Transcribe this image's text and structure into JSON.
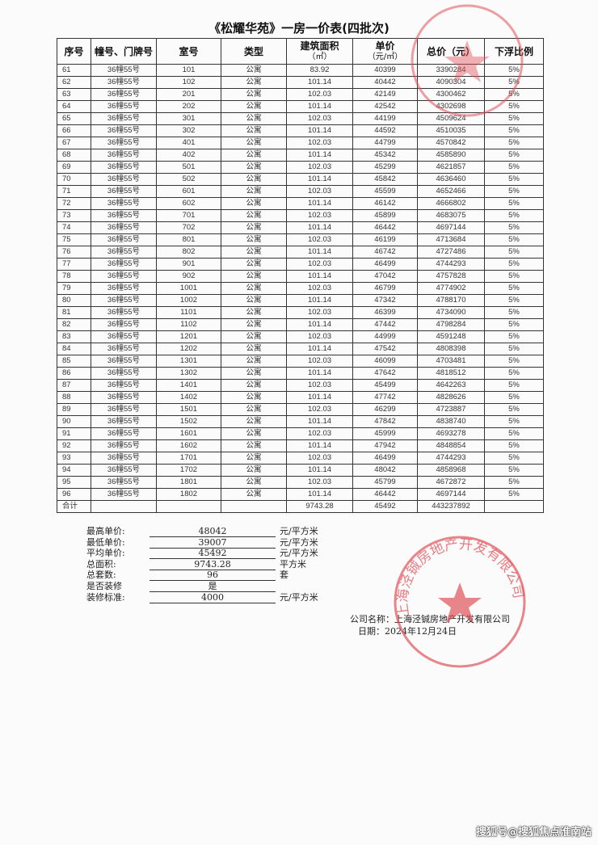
{
  "title": "《松耀华苑》一房一价表(四批次)",
  "table": {
    "headers": [
      "序号",
      "幢号、门牌号",
      "室号",
      "类型",
      "建筑面积",
      "单价",
      "总价（元）",
      "下浮比例"
    ],
    "header_units": {
      "area": "（㎡）",
      "unit_price": "（元/㎡）"
    },
    "rows": [
      [
        "61",
        "36幢55号",
        "101",
        "公寓",
        "83.92",
        "40399",
        "3390284",
        "5%"
      ],
      [
        "62",
        "36幢55号",
        "102",
        "公寓",
        "101.14",
        "40442",
        "4090304",
        "5%"
      ],
      [
        "63",
        "36幢55号",
        "201",
        "公寓",
        "102.03",
        "42149",
        "4300462",
        "5%"
      ],
      [
        "64",
        "36幢55号",
        "202",
        "公寓",
        "101.14",
        "42542",
        "4302698",
        "5%"
      ],
      [
        "65",
        "36幢55号",
        "301",
        "公寓",
        "102.03",
        "44199",
        "4509624",
        "5%"
      ],
      [
        "66",
        "36幢55号",
        "302",
        "公寓",
        "101.14",
        "44592",
        "4510035",
        "5%"
      ],
      [
        "67",
        "36幢55号",
        "401",
        "公寓",
        "102.03",
        "44799",
        "4570842",
        "5%"
      ],
      [
        "68",
        "36幢55号",
        "402",
        "公寓",
        "101.14",
        "45342",
        "4585890",
        "5%"
      ],
      [
        "69",
        "36幢55号",
        "501",
        "公寓",
        "102.03",
        "45299",
        "4621857",
        "5%"
      ],
      [
        "70",
        "36幢55号",
        "502",
        "公寓",
        "101.14",
        "45842",
        "4636460",
        "5%"
      ],
      [
        "71",
        "36幢55号",
        "601",
        "公寓",
        "102.03",
        "45599",
        "4652466",
        "5%"
      ],
      [
        "72",
        "36幢55号",
        "602",
        "公寓",
        "101.14",
        "46142",
        "4666802",
        "5%"
      ],
      [
        "73",
        "36幢55号",
        "701",
        "公寓",
        "102.03",
        "45899",
        "4683075",
        "5%"
      ],
      [
        "74",
        "36幢55号",
        "702",
        "公寓",
        "101.14",
        "46442",
        "4697144",
        "5%"
      ],
      [
        "75",
        "36幢55号",
        "801",
        "公寓",
        "102.03",
        "46199",
        "4713684",
        "5%"
      ],
      [
        "76",
        "36幢55号",
        "802",
        "公寓",
        "101.14",
        "46742",
        "4727486",
        "5%"
      ],
      [
        "77",
        "36幢55号",
        "901",
        "公寓",
        "102.03",
        "46499",
        "4744293",
        "5%"
      ],
      [
        "78",
        "36幢55号",
        "902",
        "公寓",
        "101.14",
        "47042",
        "4757828",
        "5%"
      ],
      [
        "79",
        "36幢55号",
        "1001",
        "公寓",
        "102.03",
        "46799",
        "4774902",
        "5%"
      ],
      [
        "80",
        "36幢55号",
        "1002",
        "公寓",
        "101.14",
        "47342",
        "4788170",
        "5%"
      ],
      [
        "81",
        "36幢55号",
        "1101",
        "公寓",
        "102.03",
        "46399",
        "4734090",
        "5%"
      ],
      [
        "82",
        "36幢55号",
        "1102",
        "公寓",
        "101.14",
        "47442",
        "4798284",
        "5%"
      ],
      [
        "83",
        "36幢55号",
        "1201",
        "公寓",
        "102.03",
        "44999",
        "4591248",
        "5%"
      ],
      [
        "84",
        "36幢55号",
        "1202",
        "公寓",
        "101.14",
        "47542",
        "4808398",
        "5%"
      ],
      [
        "85",
        "36幢55号",
        "1301",
        "公寓",
        "102.03",
        "46099",
        "4703481",
        "5%"
      ],
      [
        "86",
        "36幢55号",
        "1302",
        "公寓",
        "101.14",
        "47642",
        "4818512",
        "5%"
      ],
      [
        "87",
        "36幢55号",
        "1401",
        "公寓",
        "102.03",
        "45499",
        "4642263",
        "5%"
      ],
      [
        "88",
        "36幢55号",
        "1402",
        "公寓",
        "101.14",
        "47742",
        "4828626",
        "5%"
      ],
      [
        "89",
        "36幢55号",
        "1501",
        "公寓",
        "102.03",
        "46299",
        "4723887",
        "5%"
      ],
      [
        "90",
        "36幢55号",
        "1502",
        "公寓",
        "101.14",
        "47842",
        "4838740",
        "5%"
      ],
      [
        "91",
        "36幢55号",
        "1601",
        "公寓",
        "102.03",
        "45999",
        "4693278",
        "5%"
      ],
      [
        "92",
        "36幢55号",
        "1602",
        "公寓",
        "101.14",
        "47942",
        "4848854",
        "5%"
      ],
      [
        "93",
        "36幢55号",
        "1701",
        "公寓",
        "102.03",
        "46499",
        "4744293",
        "5%"
      ],
      [
        "94",
        "36幢55号",
        "1702",
        "公寓",
        "101.14",
        "48042",
        "4858968",
        "5%"
      ],
      [
        "95",
        "36幢55号",
        "1801",
        "公寓",
        "102.03",
        "45799",
        "4672872",
        "5%"
      ],
      [
        "96",
        "36幢55号",
        "1802",
        "公寓",
        "101.14",
        "46442",
        "4697144",
        "5%"
      ]
    ],
    "total": {
      "label": "合计",
      "area": "9743.28",
      "unit_price": "45492",
      "total_price": "443237892"
    }
  },
  "summary": [
    {
      "label": "最高单价:",
      "value": "48042",
      "unit": "元/平方米"
    },
    {
      "label": "最低单价:",
      "value": "39007",
      "unit": "元/平方米"
    },
    {
      "label": "平均单价:",
      "value": "45492",
      "unit": "元/平方米"
    },
    {
      "label": "总面积:",
      "value": "9743.28",
      "unit": "平方米"
    },
    {
      "label": "总套数:",
      "value": "96",
      "unit": "套"
    },
    {
      "label": "是否装修",
      "value": "是",
      "unit": ""
    },
    {
      "label": "装修标准:",
      "value": "4000",
      "unit": "元/平方米"
    }
  ],
  "company": {
    "label": "公司名称：",
    "name": "上海泾铖房地产开发有限公司"
  },
  "date": {
    "label": "日期：",
    "value": "2024年12月24日"
  },
  "stamp": {
    "text": "上海泾铖房地产开发有限公司",
    "color": "#e0525a"
  },
  "watermark": "搜狐号@搜狐焦点淮南站"
}
